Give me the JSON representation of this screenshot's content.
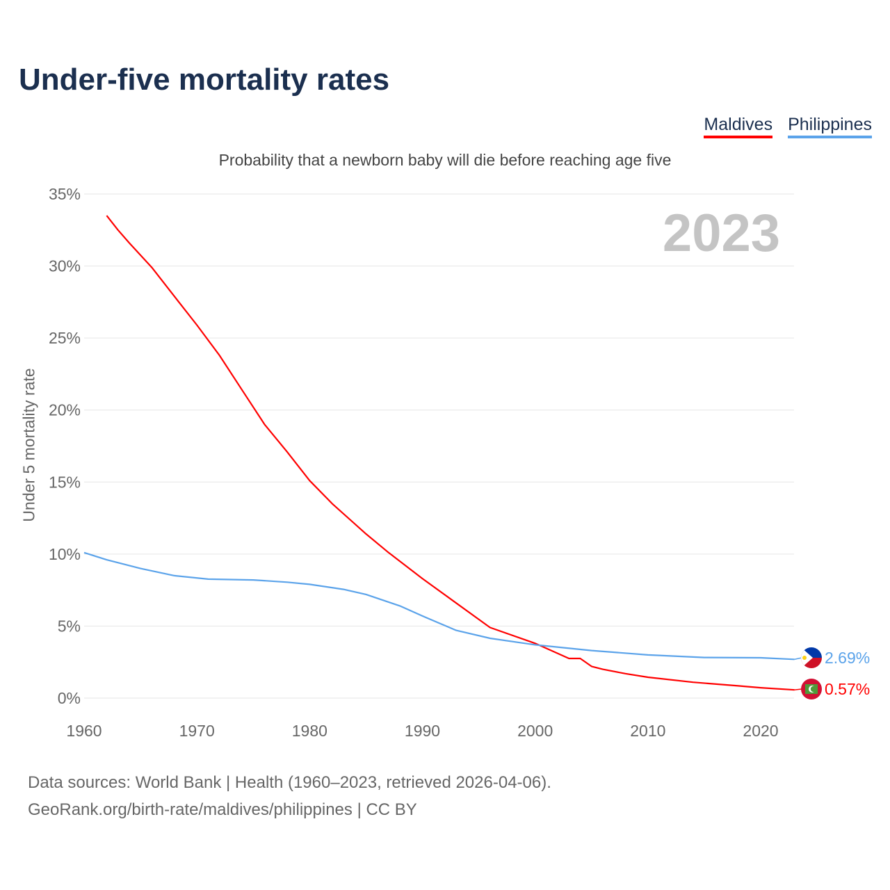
{
  "title": "Under-five mortality rates",
  "subtitle": "Probability that a newborn baby will die before reaching age five",
  "year_label": "2023",
  "source_line1": "Data sources: World Bank | Health (1960–2023, retrieved 2026-04-06).",
  "source_line2": "GeoRank.org/birth-rate/maldives/philippines | CC BY",
  "chart_data": {
    "type": "line",
    "title": "Under-five mortality rates",
    "ylabel": "Under 5 mortality rate",
    "xlabel": "",
    "xlim": [
      1960,
      2023
    ],
    "ylim": [
      0,
      35
    ],
    "x_ticks": [
      1960,
      1970,
      1980,
      1990,
      2000,
      2010,
      2020
    ],
    "y_ticks": [
      0,
      5,
      10,
      15,
      20,
      25,
      30,
      35
    ],
    "y_tick_labels": [
      "0%",
      "5%",
      "10%",
      "15%",
      "20%",
      "25%",
      "30%",
      "35%"
    ],
    "grid": true,
    "legend_position": "top-right",
    "series": [
      {
        "name": "Maldives",
        "color": "#ff0000",
        "end_label": "0.57%",
        "flag": "maldives-flag",
        "points": [
          [
            1962,
            33.5
          ],
          [
            1963,
            32.5
          ],
          [
            1964,
            31.6
          ],
          [
            1966,
            29.9
          ],
          [
            1968,
            27.9
          ],
          [
            1970,
            25.9
          ],
          [
            1972,
            23.8
          ],
          [
            1974,
            21.4
          ],
          [
            1976,
            19.0
          ],
          [
            1978,
            17.1
          ],
          [
            1980,
            15.1
          ],
          [
            1982,
            13.5
          ],
          [
            1985,
            11.4
          ],
          [
            1987,
            10.1
          ],
          [
            1990,
            8.3
          ],
          [
            1993,
            6.6
          ],
          [
            1996,
            4.9
          ],
          [
            2000,
            3.8
          ],
          [
            2003,
            2.75
          ],
          [
            2004,
            2.75
          ],
          [
            2005,
            2.2
          ],
          [
            2006,
            2.0
          ],
          [
            2008,
            1.7
          ],
          [
            2010,
            1.45
          ],
          [
            2014,
            1.1
          ],
          [
            2018,
            0.85
          ],
          [
            2020,
            0.72
          ],
          [
            2023,
            0.57
          ]
        ]
      },
      {
        "name": "Philippines",
        "color": "#5ba3ea",
        "end_label": "2.69%",
        "flag": "philippines-flag",
        "points": [
          [
            1960,
            10.1
          ],
          [
            1962,
            9.6
          ],
          [
            1965,
            9.0
          ],
          [
            1968,
            8.5
          ],
          [
            1971,
            8.26
          ],
          [
            1975,
            8.2
          ],
          [
            1978,
            8.05
          ],
          [
            1980,
            7.9
          ],
          [
            1983,
            7.55
          ],
          [
            1985,
            7.2
          ],
          [
            1988,
            6.4
          ],
          [
            1990,
            5.7
          ],
          [
            1993,
            4.7
          ],
          [
            1996,
            4.15
          ],
          [
            2000,
            3.7
          ],
          [
            2005,
            3.3
          ],
          [
            2010,
            3.0
          ],
          [
            2015,
            2.82
          ],
          [
            2020,
            2.8
          ],
          [
            2023,
            2.69
          ]
        ]
      }
    ]
  }
}
